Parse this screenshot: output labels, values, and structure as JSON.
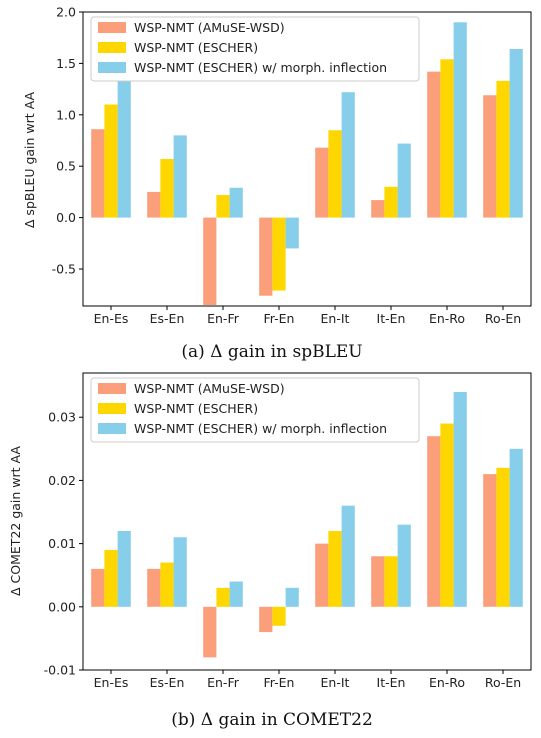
{
  "chart_data": [
    {
      "type": "bar",
      "caption": "(a) Δ gain in spBLEU",
      "ylabel": "Δ spBLEU gain wrt AA",
      "categories": [
        "En-Es",
        "Es-En",
        "En-Fr",
        "Fr-En",
        "En-It",
        "It-En",
        "En-Ro",
        "Ro-En"
      ],
      "ylim": [
        -0.86,
        2.0
      ],
      "yticks": [
        "2.0",
        "1.5",
        "1.0",
        "0.5",
        "0.0",
        "-0.5"
      ],
      "ytick_values": [
        2.0,
        1.5,
        1.0,
        0.5,
        0.0,
        -0.5
      ],
      "legend_position": "upper-left",
      "series": [
        {
          "name": "WSP-NMT (AMuSE-WSD)",
          "color": "#fa9f7a",
          "values": [
            0.86,
            0.25,
            -0.85,
            -0.76,
            0.68,
            0.17,
            1.42,
            1.19
          ]
        },
        {
          "name": "WSP-NMT (ESCHER)",
          "color": "#ffd700",
          "values": [
            1.1,
            0.57,
            0.22,
            -0.71,
            0.85,
            0.3,
            1.54,
            1.33
          ]
        },
        {
          "name": "WSP-NMT (ESCHER) w/ morph. inflection",
          "color": "#87ceeb",
          "values": [
            1.47,
            0.8,
            0.29,
            -0.3,
            1.22,
            0.72,
            1.9,
            1.64
          ]
        }
      ]
    },
    {
      "type": "bar",
      "caption": "(b) Δ gain in COMET22",
      "ylabel": "Δ COMET22 gain wrt AA",
      "categories": [
        "En-Es",
        "Es-En",
        "En-Fr",
        "Fr-En",
        "En-It",
        "It-En",
        "En-Ro",
        "Ro-En"
      ],
      "ylim": [
        -0.01,
        0.037
      ],
      "yticks": [
        "0.03",
        "0.02",
        "0.01",
        "0.00",
        "-0.01"
      ],
      "ytick_values": [
        0.03,
        0.02,
        0.01,
        0.0,
        -0.01
      ],
      "legend_position": "upper-left",
      "series": [
        {
          "name": "WSP-NMT (AMuSE-WSD)",
          "color": "#fa9f7a",
          "values": [
            0.006,
            0.006,
            -0.008,
            -0.004,
            0.01,
            0.008,
            0.027,
            0.021
          ]
        },
        {
          "name": "WSP-NMT (ESCHER)",
          "color": "#ffd700",
          "values": [
            0.009,
            0.007,
            0.003,
            -0.003,
            0.012,
            0.008,
            0.029,
            0.022
          ]
        },
        {
          "name": "WSP-NMT (ESCHER) w/ morph. inflection",
          "color": "#87ceeb",
          "values": [
            0.012,
            0.011,
            0.004,
            0.003,
            0.016,
            0.013,
            0.034,
            0.025
          ]
        }
      ]
    }
  ]
}
